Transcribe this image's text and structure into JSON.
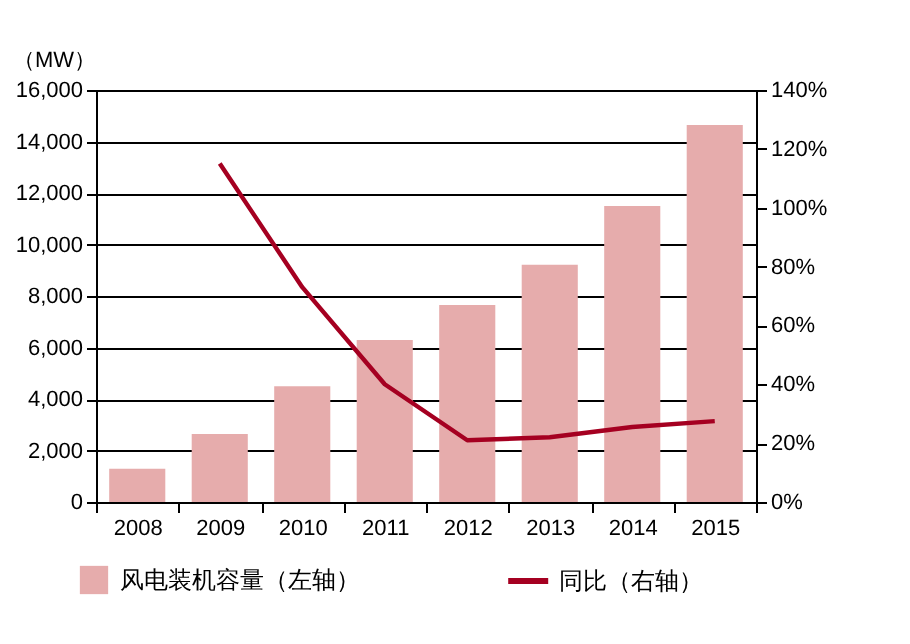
{
  "chart_data": {
    "type": "bar",
    "ylabel": "（MW）",
    "categories": [
      "2008",
      "2009",
      "2010",
      "2011",
      "2012",
      "2013",
      "2014",
      "2015"
    ],
    "series": [
      {
        "name": "风电装机容量（左轴）",
        "color": "#e6acac",
        "values": [
          1290,
          2640,
          4500,
          6290,
          7650,
          9210,
          11500,
          14640
        ]
      },
      {
        "name": "同比（右轴）",
        "type": "line",
        "axis": "y2",
        "color": "#a50021",
        "values": [
          null,
          115,
          73,
          40,
          21,
          22,
          25.5,
          27.5
        ]
      }
    ],
    "ylim": [
      0,
      16000
    ],
    "yticks": [
      {
        "value": 0,
        "label": "0"
      },
      {
        "value": 2000,
        "label": "2,000"
      },
      {
        "value": 4000,
        "label": "4,000"
      },
      {
        "value": 6000,
        "label": "6,000"
      },
      {
        "value": 8000,
        "label": "8,000"
      },
      {
        "value": 10000,
        "label": "10,000"
      },
      {
        "value": 12000,
        "label": "12,000"
      },
      {
        "value": 14000,
        "label": "14,000"
      },
      {
        "value": 16000,
        "label": "16,000"
      }
    ],
    "y2lim": [
      0,
      140
    ],
    "y2ticks": [
      {
        "value": 0,
        "label": "0%"
      },
      {
        "value": 20,
        "label": "20%"
      },
      {
        "value": 40,
        "label": "40%"
      },
      {
        "value": 60,
        "label": "60%"
      },
      {
        "value": 80,
        "label": "80%"
      },
      {
        "value": 100,
        "label": "100%"
      },
      {
        "value": 120,
        "label": "120%"
      },
      {
        "value": 140,
        "label": "140%"
      }
    ],
    "grid": "y",
    "legend": "bottom"
  }
}
